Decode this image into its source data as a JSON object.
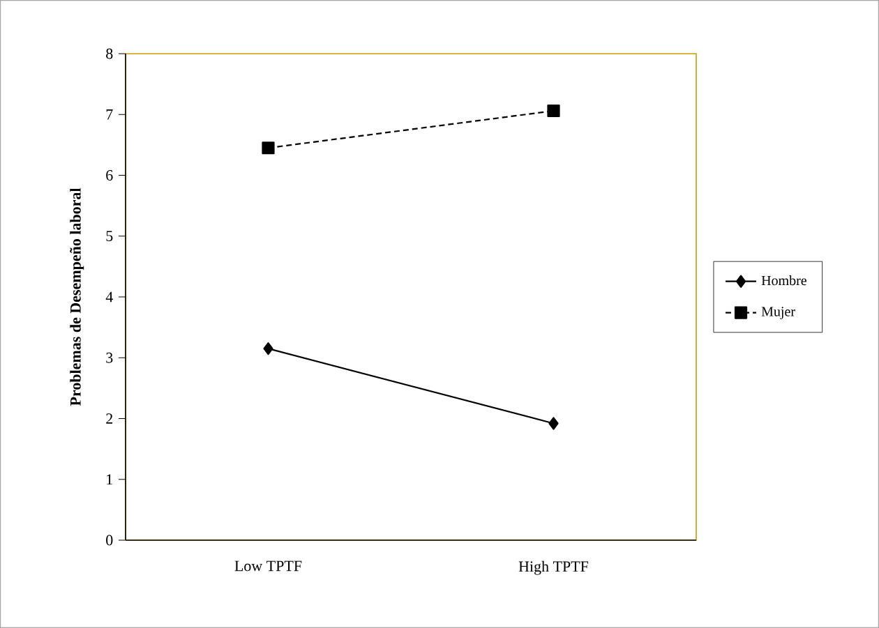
{
  "chart_data": {
    "type": "line",
    "ylabel": "Problemas de Desempeño laboral",
    "categories": [
      "Low TPTF",
      "High TPTF"
    ],
    "series": [
      {
        "name": "Hombre",
        "color": "#000000",
        "values": [
          3.15,
          1.92
        ],
        "marker": "diamond",
        "line_style": "solid"
      },
      {
        "name": "Mujer",
        "color": "#000000",
        "values": [
          6.45,
          7.06
        ],
        "marker": "square",
        "line_style": "dashed"
      }
    ],
    "ylim": [
      0,
      8
    ],
    "yticks": [
      0,
      1,
      2,
      3,
      4,
      5,
      6,
      7,
      8
    ],
    "grid": false,
    "legend": "right"
  }
}
